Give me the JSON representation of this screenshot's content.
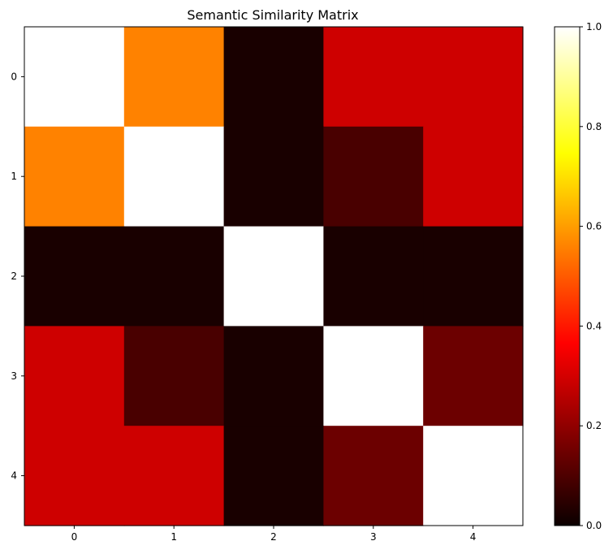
{
  "chart_data": {
    "type": "heatmap",
    "title": "Semantic Similarity Matrix",
    "xlabel": "",
    "ylabel": "",
    "colormap": "hot",
    "x_categories": [
      "0",
      "1",
      "2",
      "3",
      "4"
    ],
    "y_categories": [
      "0",
      "1",
      "2",
      "3",
      "4"
    ],
    "values": [
      [
        1.0,
        0.56,
        0.02,
        0.28,
        0.28
      ],
      [
        0.56,
        1.0,
        0.02,
        0.09,
        0.28
      ],
      [
        0.02,
        0.02,
        1.0,
        0.02,
        0.02
      ],
      [
        0.28,
        0.09,
        0.02,
        1.0,
        0.14
      ],
      [
        0.28,
        0.28,
        0.02,
        0.14,
        1.0
      ]
    ],
    "colorbar": {
      "range": [
        0.0,
        1.0
      ],
      "ticks": [
        0.0,
        0.2,
        0.4,
        0.6,
        0.8,
        1.0
      ],
      "tick_labels": [
        "0.0",
        "0.2",
        "0.4",
        "0.6",
        "0.8",
        "1.0"
      ]
    }
  }
}
